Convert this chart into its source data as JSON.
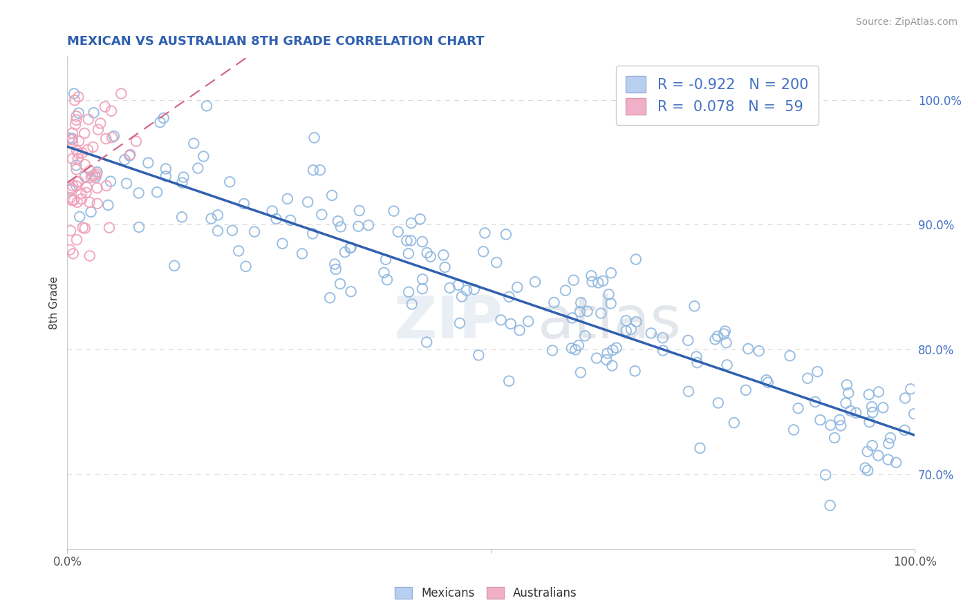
{
  "title": "MEXICAN VS AUSTRALIAN 8TH GRADE CORRELATION CHART",
  "source": "Source: ZipAtlas.com",
  "ylabel": "8th Grade",
  "legend_blue_R": "-0.922",
  "legend_blue_N": "200",
  "legend_pink_R": "0.078",
  "legend_pink_N": "59",
  "legend_blue_label": "Mexicans",
  "legend_pink_label": "Australians",
  "watermark_zip": "ZIP",
  "watermark_atlas": "atlas",
  "blue_color": "#90b8e0",
  "blue_line_color": "#3060b0",
  "pink_color": "#f0a0b8",
  "pink_line_color": "#d06080",
  "grid_color": "#d8d8d8",
  "title_color": "#3060b0",
  "tick_color": "#4472c4",
  "xmin": 0.0,
  "xmax": 1.0,
  "ymin": 0.64,
  "ymax": 1.035,
  "yticks": [
    0.7,
    0.8,
    0.9,
    1.0
  ],
  "ytick_labels": [
    "70.0%",
    "80.0%",
    "90.0%",
    "100.0%"
  ],
  "blue_seed": 12,
  "pink_seed": 99
}
